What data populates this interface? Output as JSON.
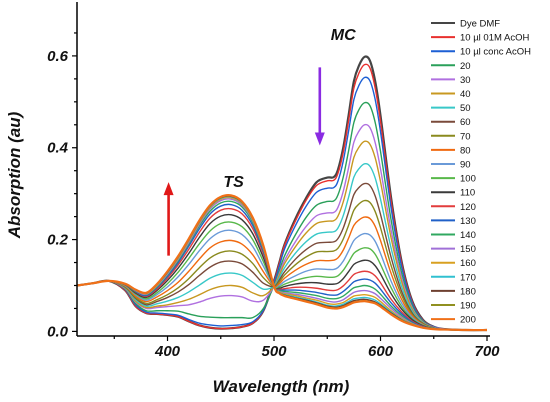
{
  "chart_data": {
    "type": "line",
    "xlabel": "Wavelength (nm)",
    "ylabel": "Absorption (au)",
    "xlim": [
      315,
      700
    ],
    "ylim": [
      -0.01,
      0.7
    ],
    "x_ticks": [
      400,
      500,
      600,
      700
    ],
    "y_ticks": [
      0.0,
      0.2,
      0.4,
      0.6
    ],
    "x_tick_labels": [
      "400",
      "500",
      "600",
      "700"
    ],
    "y_tick_labels": [
      "0.0",
      "0.2",
      "0.4",
      "0.6"
    ],
    "grid": false,
    "legend_position": "top-right",
    "x": [
      315,
      330,
      345,
      360,
      370,
      380,
      390,
      400,
      410,
      420,
      430,
      440,
      450,
      460,
      470,
      480,
      490,
      500,
      505,
      510,
      520,
      530,
      540,
      550,
      556,
      560,
      565,
      570,
      575,
      580,
      585,
      590,
      595,
      600,
      610,
      620,
      630,
      640,
      650,
      660,
      680,
      700
    ],
    "series": [
      {
        "name": "Dye DMF",
        "color": "#454545",
        "values": [
          0.1,
          0.105,
          0.11,
          0.09,
          0.055,
          0.04,
          0.038,
          0.036,
          0.032,
          0.022,
          0.013,
          0.008,
          0.006,
          0.007,
          0.01,
          0.018,
          0.045,
          0.11,
          0.15,
          0.19,
          0.245,
          0.29,
          0.325,
          0.335,
          0.336,
          0.352,
          0.4,
          0.47,
          0.545,
          0.58,
          0.598,
          0.59,
          0.545,
          0.47,
          0.29,
          0.15,
          0.065,
          0.025,
          0.01,
          0.005,
          0.003,
          0.003
        ]
      },
      {
        "name": "10 µl 01M AcOH",
        "color": "#e8302e",
        "values": [
          0.1,
          0.105,
          0.11,
          0.09,
          0.055,
          0.04,
          0.038,
          0.036,
          0.032,
          0.022,
          0.013,
          0.008,
          0.006,
          0.007,
          0.01,
          0.018,
          0.045,
          0.108,
          0.148,
          0.188,
          0.24,
          0.285,
          0.318,
          0.328,
          0.329,
          0.344,
          0.39,
          0.458,
          0.53,
          0.564,
          0.581,
          0.574,
          0.53,
          0.457,
          0.282,
          0.146,
          0.063,
          0.024,
          0.01,
          0.005,
          0.003,
          0.003
        ]
      },
      {
        "name": "10 µl conc AcOH",
        "color": "#1c5fd4",
        "values": [
          0.1,
          0.105,
          0.11,
          0.092,
          0.058,
          0.042,
          0.04,
          0.038,
          0.035,
          0.026,
          0.018,
          0.014,
          0.012,
          0.013,
          0.015,
          0.021,
          0.046,
          0.105,
          0.142,
          0.18,
          0.23,
          0.272,
          0.303,
          0.312,
          0.313,
          0.327,
          0.371,
          0.436,
          0.505,
          0.537,
          0.553,
          0.546,
          0.505,
          0.435,
          0.268,
          0.139,
          0.06,
          0.023,
          0.01,
          0.005,
          0.003,
          0.003
        ]
      },
      {
        "name": "20",
        "color": "#2aa05a",
        "values": [
          0.1,
          0.105,
          0.11,
          0.093,
          0.061,
          0.045,
          0.045,
          0.045,
          0.044,
          0.038,
          0.033,
          0.031,
          0.03,
          0.03,
          0.03,
          0.03,
          0.05,
          0.1,
          0.132,
          0.165,
          0.21,
          0.248,
          0.275,
          0.283,
          0.284,
          0.297,
          0.336,
          0.393,
          0.455,
          0.484,
          0.498,
          0.492,
          0.455,
          0.392,
          0.242,
          0.126,
          0.055,
          0.022,
          0.009,
          0.005,
          0.003,
          0.003
        ]
      },
      {
        "name": "30",
        "color": "#b070e0",
        "values": [
          0.1,
          0.105,
          0.11,
          0.094,
          0.064,
          0.05,
          0.052,
          0.054,
          0.056,
          0.058,
          0.064,
          0.072,
          0.077,
          0.078,
          0.075,
          0.066,
          0.068,
          0.098,
          0.126,
          0.155,
          0.195,
          0.228,
          0.252,
          0.258,
          0.259,
          0.27,
          0.305,
          0.356,
          0.412,
          0.437,
          0.45,
          0.444,
          0.411,
          0.354,
          0.22,
          0.115,
          0.05,
          0.02,
          0.009,
          0.005,
          0.003,
          0.003
        ]
      },
      {
        "name": "40",
        "color": "#c89820",
        "values": [
          0.1,
          0.105,
          0.11,
          0.095,
          0.066,
          0.052,
          0.055,
          0.058,
          0.063,
          0.07,
          0.08,
          0.091,
          0.098,
          0.1,
          0.096,
          0.084,
          0.078,
          0.098,
          0.122,
          0.148,
          0.184,
          0.214,
          0.235,
          0.24,
          0.241,
          0.251,
          0.282,
          0.328,
          0.379,
          0.402,
          0.414,
          0.408,
          0.378,
          0.326,
          0.203,
          0.107,
          0.047,
          0.019,
          0.008,
          0.004,
          0.003,
          0.003
        ]
      },
      {
        "name": "50",
        "color": "#38c8c8",
        "values": [
          0.1,
          0.105,
          0.11,
          0.096,
          0.069,
          0.055,
          0.06,
          0.066,
          0.074,
          0.086,
          0.101,
          0.116,
          0.125,
          0.127,
          0.122,
          0.107,
          0.092,
          0.098,
          0.117,
          0.139,
          0.17,
          0.195,
          0.212,
          0.216,
          0.217,
          0.225,
          0.252,
          0.292,
          0.336,
          0.355,
          0.365,
          0.36,
          0.334,
          0.288,
          0.181,
          0.096,
          0.043,
          0.018,
          0.008,
          0.004,
          0.003,
          0.003
        ]
      },
      {
        "name": "60",
        "color": "#7a4a3a",
        "values": [
          0.1,
          0.105,
          0.11,
          0.097,
          0.072,
          0.058,
          0.065,
          0.074,
          0.086,
          0.102,
          0.122,
          0.14,
          0.151,
          0.153,
          0.147,
          0.129,
          0.105,
          0.098,
          0.112,
          0.13,
          0.157,
          0.178,
          0.192,
          0.194,
          0.195,
          0.202,
          0.225,
          0.26,
          0.298,
          0.314,
          0.322,
          0.318,
          0.295,
          0.255,
          0.161,
          0.086,
          0.039,
          0.017,
          0.008,
          0.004,
          0.003,
          0.003
        ]
      },
      {
        "name": "70",
        "color": "#8a8a1e",
        "values": [
          0.1,
          0.105,
          0.11,
          0.098,
          0.074,
          0.061,
          0.069,
          0.08,
          0.095,
          0.115,
          0.139,
          0.16,
          0.172,
          0.175,
          0.168,
          0.148,
          0.117,
          0.098,
          0.108,
          0.123,
          0.145,
          0.162,
          0.173,
          0.174,
          0.175,
          0.181,
          0.201,
          0.231,
          0.264,
          0.278,
          0.285,
          0.281,
          0.261,
          0.226,
          0.143,
          0.078,
          0.036,
          0.016,
          0.007,
          0.004,
          0.003,
          0.003
        ]
      },
      {
        "name": "80",
        "color": "#f06a10",
        "values": [
          0.1,
          0.105,
          0.11,
          0.099,
          0.077,
          0.065,
          0.075,
          0.089,
          0.107,
          0.131,
          0.158,
          0.182,
          0.195,
          0.198,
          0.19,
          0.167,
          0.13,
          0.098,
          0.104,
          0.116,
          0.133,
          0.146,
          0.154,
          0.154,
          0.155,
          0.16,
          0.177,
          0.203,
          0.231,
          0.243,
          0.249,
          0.246,
          0.229,
          0.198,
          0.126,
          0.069,
          0.033,
          0.015,
          0.007,
          0.004,
          0.003,
          0.003
        ]
      },
      {
        "name": "90",
        "color": "#6a9ad8",
        "values": [
          0.1,
          0.105,
          0.11,
          0.1,
          0.08,
          0.068,
          0.08,
          0.097,
          0.119,
          0.146,
          0.176,
          0.202,
          0.217,
          0.22,
          0.211,
          0.185,
          0.142,
          0.098,
          0.1,
          0.109,
          0.121,
          0.131,
          0.136,
          0.135,
          0.135,
          0.139,
          0.153,
          0.175,
          0.198,
          0.208,
          0.213,
          0.21,
          0.196,
          0.17,
          0.109,
          0.061,
          0.03,
          0.014,
          0.007,
          0.004,
          0.003,
          0.003
        ]
      },
      {
        "name": "100",
        "color": "#58b84a",
        "values": [
          0.1,
          0.105,
          0.11,
          0.101,
          0.082,
          0.071,
          0.084,
          0.104,
          0.129,
          0.159,
          0.191,
          0.219,
          0.235,
          0.238,
          0.228,
          0.2,
          0.152,
          0.098,
          0.097,
          0.103,
          0.111,
          0.117,
          0.12,
          0.118,
          0.118,
          0.121,
          0.133,
          0.151,
          0.17,
          0.178,
          0.182,
          0.18,
          0.168,
          0.146,
          0.095,
          0.054,
          0.027,
          0.013,
          0.007,
          0.004,
          0.003,
          0.003
        ]
      },
      {
        "name": "110",
        "color": "#3a3a3a",
        "values": [
          0.1,
          0.105,
          0.11,
          0.102,
          0.084,
          0.074,
          0.089,
          0.111,
          0.138,
          0.17,
          0.205,
          0.235,
          0.251,
          0.254,
          0.243,
          0.213,
          0.161,
          0.098,
          0.094,
          0.098,
          0.103,
          0.106,
          0.106,
          0.103,
          0.103,
          0.105,
          0.115,
          0.13,
          0.146,
          0.152,
          0.155,
          0.153,
          0.143,
          0.125,
          0.082,
          0.048,
          0.025,
          0.012,
          0.006,
          0.004,
          0.003,
          0.003
        ]
      },
      {
        "name": "120",
        "color": "#e23c3c",
        "values": [
          0.1,
          0.105,
          0.11,
          0.102,
          0.086,
          0.076,
          0.092,
          0.116,
          0.145,
          0.179,
          0.216,
          0.247,
          0.264,
          0.267,
          0.256,
          0.224,
          0.169,
          0.098,
          0.092,
          0.093,
          0.096,
          0.096,
          0.094,
          0.09,
          0.089,
          0.091,
          0.099,
          0.111,
          0.124,
          0.129,
          0.131,
          0.129,
          0.121,
          0.106,
          0.07,
          0.042,
          0.022,
          0.011,
          0.006,
          0.004,
          0.003,
          0.003
        ]
      },
      {
        "name": "130",
        "color": "#2060c8",
        "values": [
          0.1,
          0.105,
          0.11,
          0.103,
          0.087,
          0.078,
          0.095,
          0.12,
          0.15,
          0.186,
          0.224,
          0.256,
          0.273,
          0.276,
          0.264,
          0.231,
          0.174,
          0.098,
          0.09,
          0.09,
          0.09,
          0.088,
          0.085,
          0.08,
          0.079,
          0.08,
          0.087,
          0.097,
          0.108,
          0.112,
          0.114,
          0.112,
          0.105,
          0.092,
          0.062,
          0.038,
          0.02,
          0.01,
          0.006,
          0.004,
          0.003,
          0.003
        ]
      },
      {
        "name": "140",
        "color": "#30a860",
        "values": [
          0.1,
          0.105,
          0.11,
          0.103,
          0.088,
          0.08,
          0.097,
          0.123,
          0.154,
          0.191,
          0.23,
          0.262,
          0.28,
          0.283,
          0.271,
          0.237,
          0.178,
          0.098,
          0.089,
          0.087,
          0.085,
          0.082,
          0.078,
          0.072,
          0.071,
          0.072,
          0.077,
          0.086,
          0.095,
          0.098,
          0.1,
          0.098,
          0.092,
          0.081,
          0.055,
          0.034,
          0.018,
          0.009,
          0.005,
          0.004,
          0.003,
          0.003
        ]
      },
      {
        "name": "150",
        "color": "#a070d8",
        "values": [
          0.1,
          0.105,
          0.11,
          0.104,
          0.089,
          0.081,
          0.099,
          0.125,
          0.157,
          0.194,
          0.234,
          0.267,
          0.285,
          0.288,
          0.275,
          0.241,
          0.181,
          0.098,
          0.087,
          0.084,
          0.081,
          0.077,
          0.072,
          0.066,
          0.064,
          0.065,
          0.069,
          0.077,
          0.085,
          0.088,
          0.089,
          0.087,
          0.082,
          0.072,
          0.05,
          0.031,
          0.017,
          0.009,
          0.005,
          0.004,
          0.003,
          0.003
        ]
      },
      {
        "name": "160",
        "color": "#d8a020",
        "values": [
          0.1,
          0.105,
          0.11,
          0.104,
          0.09,
          0.082,
          0.1,
          0.127,
          0.159,
          0.197,
          0.237,
          0.27,
          0.288,
          0.291,
          0.278,
          0.243,
          0.183,
          0.098,
          0.086,
          0.082,
          0.078,
          0.073,
          0.068,
          0.061,
          0.059,
          0.06,
          0.063,
          0.07,
          0.077,
          0.079,
          0.08,
          0.078,
          0.074,
          0.065,
          0.045,
          0.028,
          0.016,
          0.008,
          0.005,
          0.004,
          0.003,
          0.003
        ]
      },
      {
        "name": "170",
        "color": "#30c0d0",
        "values": [
          0.1,
          0.105,
          0.11,
          0.104,
          0.09,
          0.083,
          0.101,
          0.128,
          0.161,
          0.199,
          0.239,
          0.272,
          0.29,
          0.293,
          0.28,
          0.245,
          0.184,
          0.098,
          0.085,
          0.08,
          0.075,
          0.07,
          0.064,
          0.057,
          0.055,
          0.056,
          0.059,
          0.065,
          0.071,
          0.073,
          0.074,
          0.072,
          0.068,
          0.06,
          0.042,
          0.026,
          0.015,
          0.008,
          0.005,
          0.004,
          0.003,
          0.003
        ]
      },
      {
        "name": "180",
        "color": "#6e4030",
        "values": [
          0.1,
          0.105,
          0.11,
          0.104,
          0.091,
          0.083,
          0.102,
          0.129,
          0.162,
          0.2,
          0.24,
          0.273,
          0.291,
          0.294,
          0.281,
          0.246,
          0.185,
          0.098,
          0.084,
          0.079,
          0.073,
          0.068,
          0.062,
          0.055,
          0.053,
          0.053,
          0.056,
          0.062,
          0.067,
          0.069,
          0.07,
          0.068,
          0.064,
          0.057,
          0.04,
          0.025,
          0.015,
          0.008,
          0.005,
          0.004,
          0.003,
          0.003
        ]
      },
      {
        "name": "190",
        "color": "#909020",
        "values": [
          0.1,
          0.105,
          0.11,
          0.104,
          0.091,
          0.084,
          0.102,
          0.13,
          0.163,
          0.201,
          0.241,
          0.274,
          0.292,
          0.295,
          0.282,
          0.247,
          0.186,
          0.098,
          0.084,
          0.078,
          0.072,
          0.066,
          0.06,
          0.053,
          0.051,
          0.051,
          0.054,
          0.059,
          0.064,
          0.066,
          0.067,
          0.065,
          0.062,
          0.055,
          0.038,
          0.024,
          0.014,
          0.008,
          0.005,
          0.004,
          0.003,
          0.003
        ]
      },
      {
        "name": "200",
        "color": "#f07018",
        "values": [
          0.1,
          0.105,
          0.11,
          0.104,
          0.091,
          0.084,
          0.103,
          0.131,
          0.164,
          0.202,
          0.242,
          0.275,
          0.293,
          0.296,
          0.283,
          0.248,
          0.187,
          0.098,
          0.083,
          0.077,
          0.071,
          0.065,
          0.059,
          0.052,
          0.05,
          0.05,
          0.053,
          0.058,
          0.063,
          0.065,
          0.066,
          0.064,
          0.061,
          0.054,
          0.037,
          0.023,
          0.014,
          0.008,
          0.005,
          0.004,
          0.003,
          0.003
        ]
      }
    ],
    "annotations": [
      {
        "text": "TS",
        "x": 462,
        "y": 0.315
      },
      {
        "text": "MC",
        "x": 565,
        "y": 0.635
      }
    ],
    "arrows": [
      {
        "direction": "up",
        "x": 401,
        "y_from": 0.165,
        "y_to": 0.325,
        "color": "#e01818"
      },
      {
        "direction": "down",
        "x": 543,
        "y_from": 0.575,
        "y_to": 0.405,
        "color": "#8a2be2"
      }
    ]
  }
}
